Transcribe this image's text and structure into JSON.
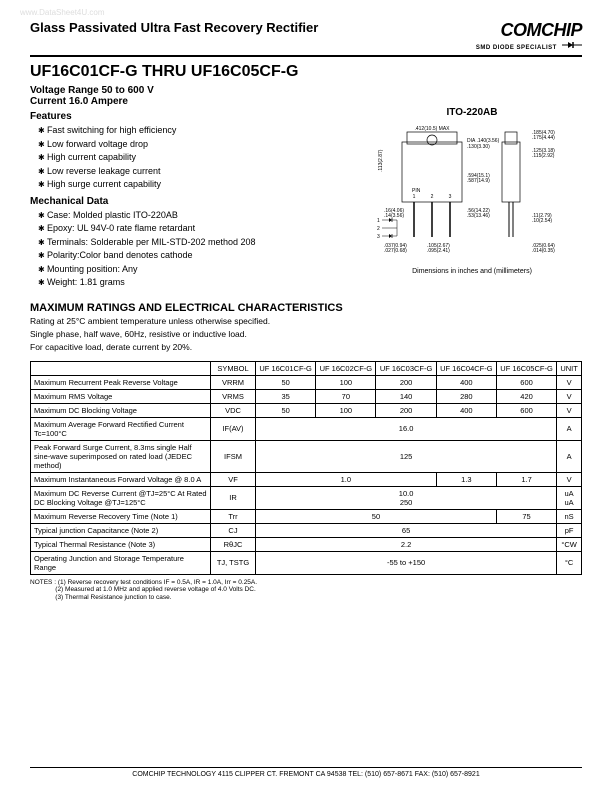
{
  "watermark": "www.DataSheet4U.com",
  "header": {
    "title": "Glass Passivated Ultra Fast Recovery Rectifier",
    "logo": "COMCHIP",
    "logoSub": "SMD DIODE SPECIALIST"
  },
  "partNumber": "UF16C01CF-G THRU UF16C05CF-G",
  "voltageRange": "Voltage Range 50 to 600 V",
  "current": "Current 16.0 Ampere",
  "featuresLabel": "Features",
  "features": [
    "Fast switching for high efficiency",
    "Low forward voltage drop",
    "High current capability",
    "Low reverse leakage current",
    "High surge current capability"
  ],
  "mechDataLabel": "Mechanical Data",
  "mechData": [
    "Case: Molded plastic ITO-220AB",
    "Epoxy: UL 94V-0 rate flame retardant",
    "Terminals: Solderable per MIL-STD-202 method 208",
    "Polarity:Color band denotes cathode",
    "Mounting position: Any",
    "Weight: 1.81 grams"
  ],
  "packageTitle": "ITO-220AB",
  "packageNote": "Dimensions in inches and (millimeters)",
  "ratingsHeader": "MAXIMUM RATINGS AND ELECTRICAL CHARACTERISTICS",
  "ratingsSub1": "Rating at 25°C ambient temperature unless otherwise specified.",
  "ratingsSub2": "Single phase, half wave, 60Hz, resistive or inductive load.",
  "ratingsSub3": "For capacitive load, derate current by 20%.",
  "tableHeaders": {
    "symbol": "SYMBOL",
    "c1": "UF 16C01CF-G",
    "c2": "UF 16C02CF-G",
    "c3": "UF 16C03CF-G",
    "c4": "UF 16C04CF-G",
    "c5": "UF 16C05CF-G",
    "unit": "UNIT"
  },
  "rows": [
    {
      "param": "Maximum Recurrent Peak Reverse Voltage",
      "sym": "VRRM",
      "v": [
        "50",
        "100",
        "200",
        "400",
        "600"
      ],
      "unit": "V"
    },
    {
      "param": "Maximum RMS Voltage",
      "sym": "VRMS",
      "v": [
        "35",
        "70",
        "140",
        "280",
        "420"
      ],
      "unit": "V"
    },
    {
      "param": "Maximum DC Blocking Voltage",
      "sym": "VDC",
      "v": [
        "50",
        "100",
        "200",
        "400",
        "600"
      ],
      "unit": "V"
    },
    {
      "param": "Maximum Average Forward Rectified Current Tc=100°C",
      "sym": "IF(AV)",
      "span": "16.0",
      "unit": "A"
    },
    {
      "param": "Peak Forward Surge Current, 8.3ms single Half sine-wave superimposed on rated load (JEDEC method)",
      "sym": "IFSM",
      "span": "125",
      "unit": "A"
    },
    {
      "param": "Maximum Instantaneous Forward Voltage @ 8.0 A",
      "sym": "VF",
      "v3": [
        "1.0",
        "1.3",
        "1.7"
      ],
      "unit": "V"
    },
    {
      "param": "Maximum DC Reverse Current @TJ=25°C At Rated DC Blocking Voltage @TJ=125°C",
      "sym": "IR",
      "double": [
        "10.0",
        "250"
      ],
      "unit": "uA uA"
    },
    {
      "param": "Maximum Reverse Recovery Time (Note 1)",
      "sym": "Trr",
      "v2": [
        "50",
        "75"
      ],
      "unit": "nS"
    },
    {
      "param": "Typical junction Capacitance (Note 2)",
      "sym": "CJ",
      "span": "65",
      "unit": "pF"
    },
    {
      "param": "Typical Thermal Resistance (Note 3)",
      "sym": "RθJC",
      "span": "2.2",
      "unit": "°CW"
    },
    {
      "param": "Operating Junction and Storage Temperature Range",
      "sym": "TJ, TSTG",
      "span": "-55 to +150",
      "unit": "°C"
    }
  ],
  "notesLabel": "NOTES :",
  "notes": [
    "(1) Reverse recovery test conditions IF = 0.5A, IR = 1.0A, Irr = 0.25A.",
    "(2) Measured at 1.0 MHz and applied reverse voltage of 4.0 Volts DC.",
    "(3) Thermal Resistance junction to case."
  ],
  "footer": "COMCHIP TECHNOLOGY   4115 CLIPPER CT. FREMONT CA 94538   TEL: (510) 657-8671 FAX: (510) 657-8921"
}
